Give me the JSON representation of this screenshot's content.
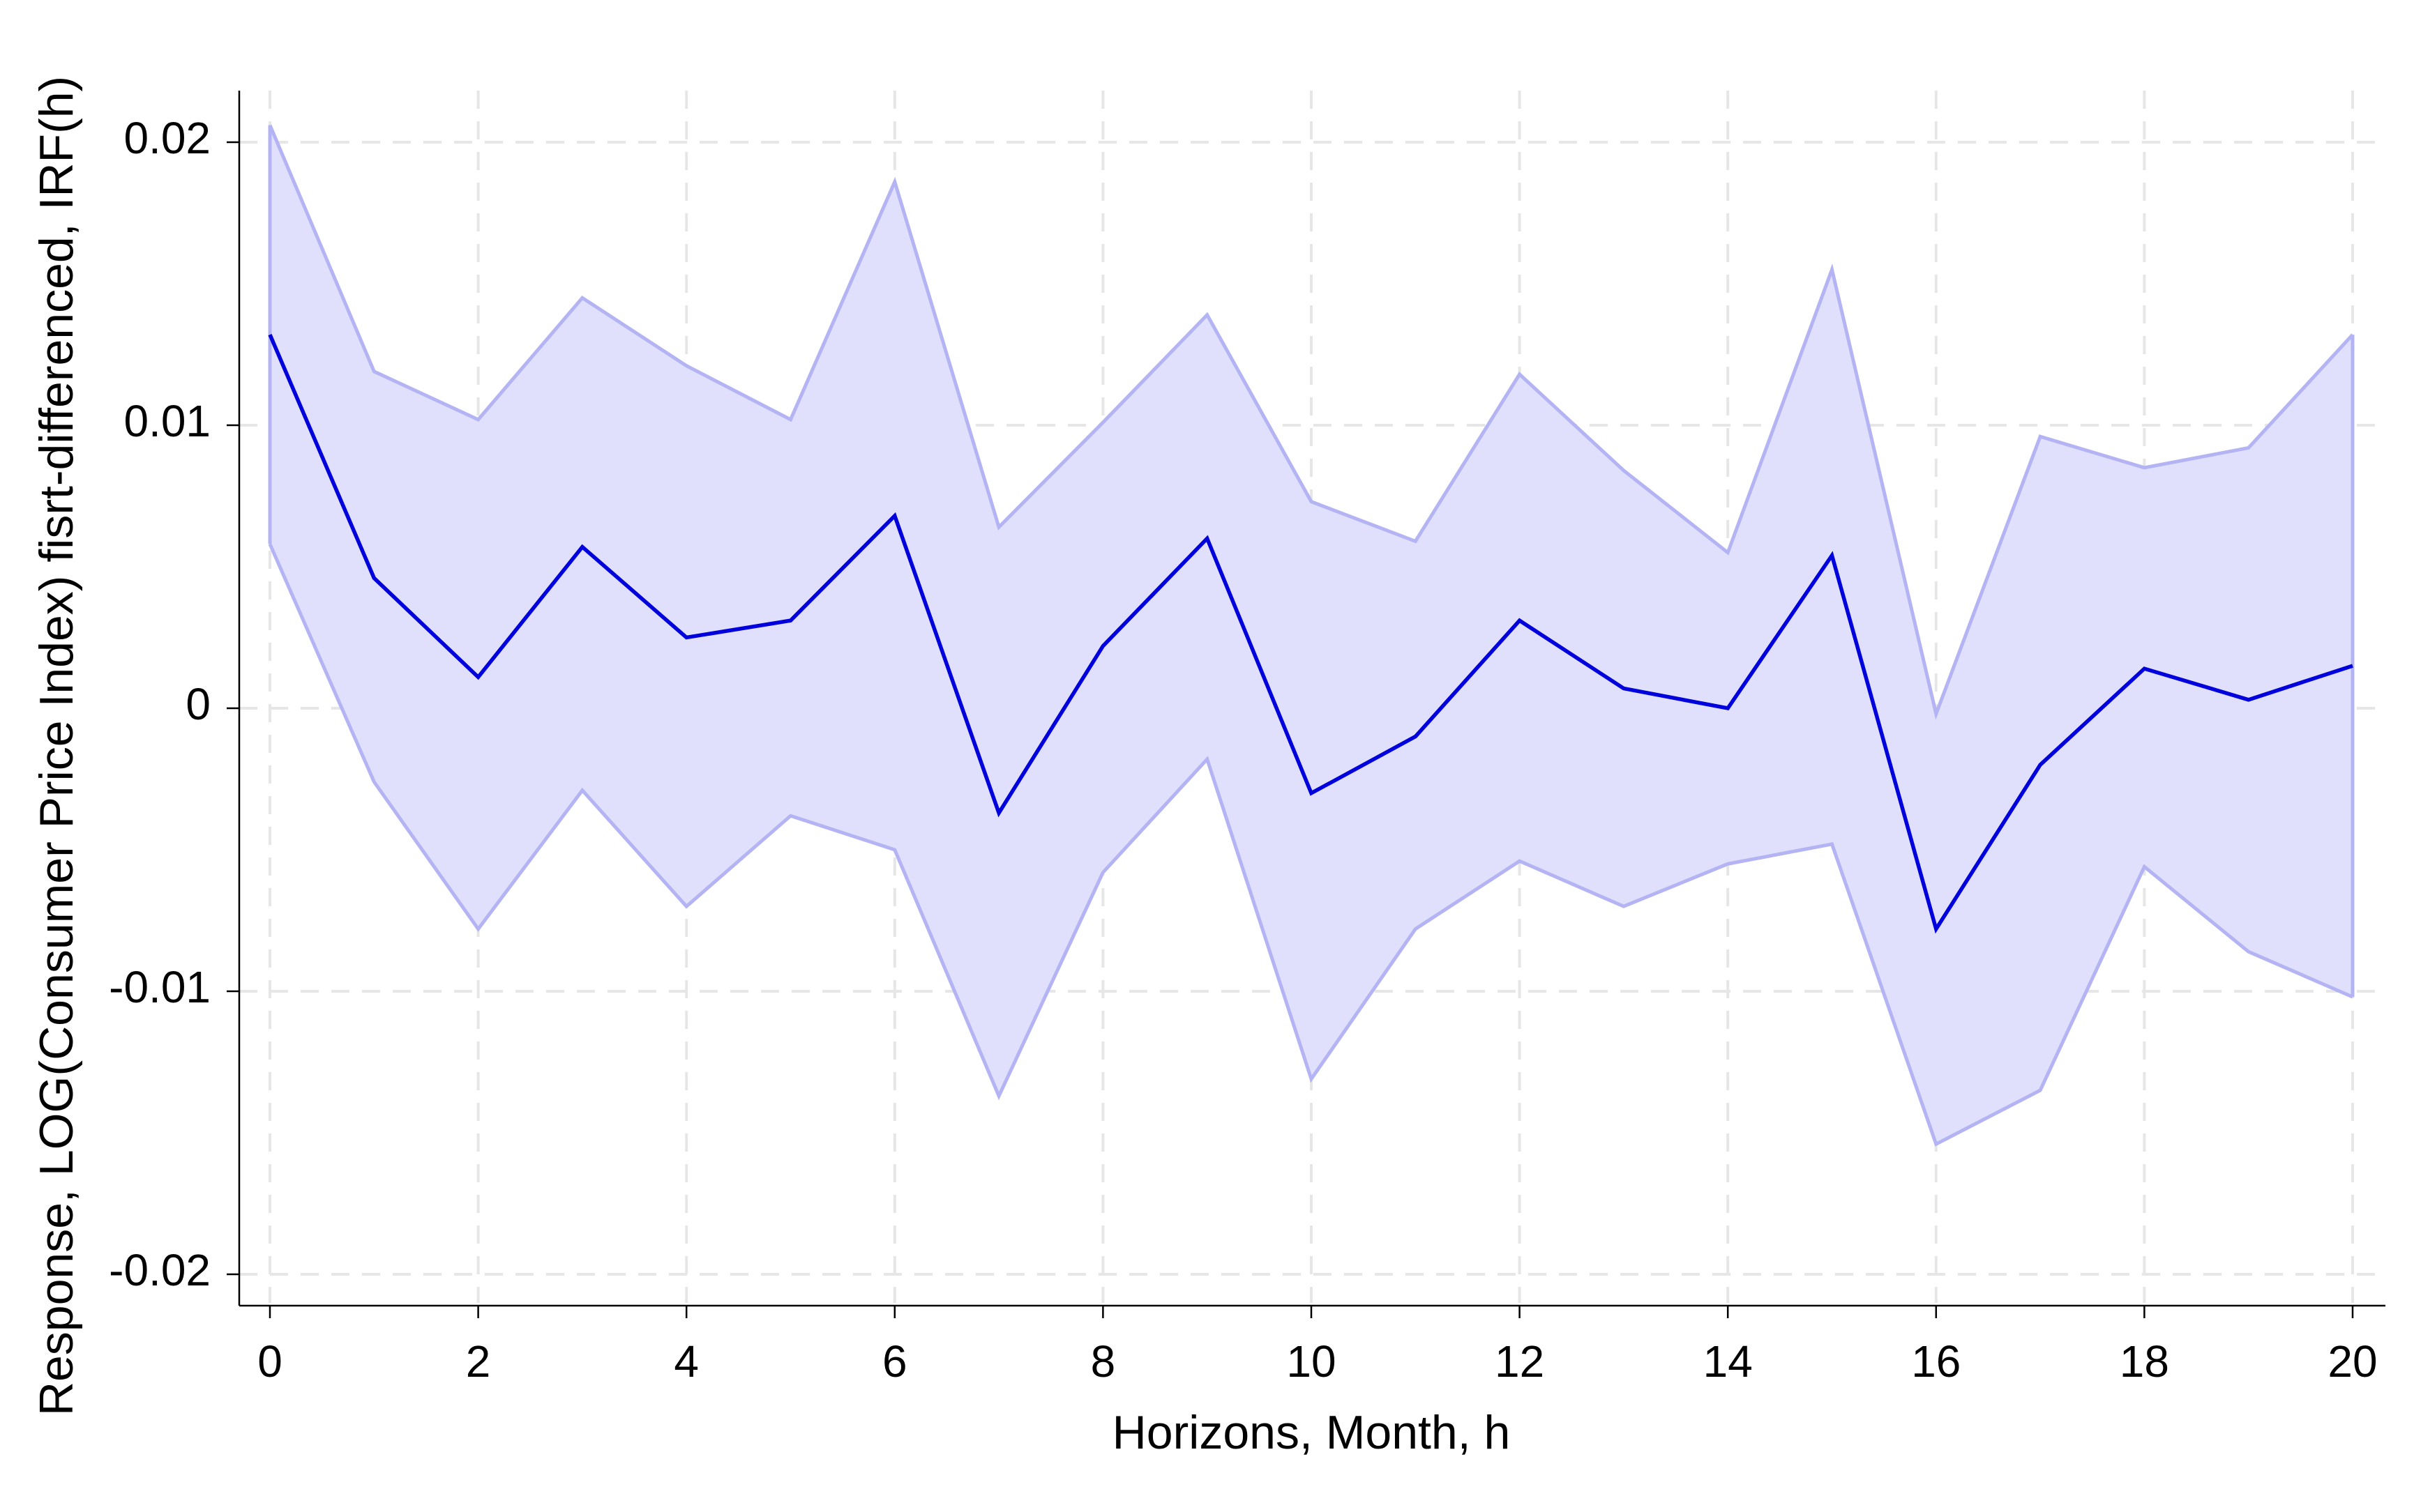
{
  "chart_data": {
    "type": "line",
    "xlabel": "Horizons, Month, h",
    "ylabel": "Response, LOG(Consumer Price Index) fisrt-differenced, IRF(h)",
    "xlim": [
      0,
      20
    ],
    "ylim": [
      -0.02,
      0.02
    ],
    "xticks": [
      0,
      2,
      4,
      6,
      8,
      10,
      12,
      14,
      16,
      18,
      20
    ],
    "yticks": [
      -0.02,
      -0.01,
      0,
      0.01,
      0.02
    ],
    "ytick_labels": [
      "-0.02",
      "-0.01",
      "0",
      "0.01",
      "0.02"
    ],
    "grid": true,
    "grid_style": "dashed",
    "x": [
      0,
      1,
      2,
      3,
      4,
      5,
      6,
      7,
      8,
      9,
      10,
      11,
      12,
      13,
      14,
      15,
      16,
      17,
      18,
      19,
      20
    ],
    "series": [
      {
        "role": "estimate",
        "color": "#0000dd",
        "values": [
          0.0132,
          0.0046,
          0.0011,
          0.0057,
          0.0025,
          0.0031,
          0.0068,
          -0.0037,
          0.0022,
          0.006,
          -0.003,
          -0.001,
          0.0031,
          0.0007,
          0.0,
          0.0054,
          -0.0078,
          -0.002,
          0.0014,
          0.0003,
          0.0015
        ]
      },
      {
        "role": "upper_bound",
        "color": "#b4b4f4",
        "values": [
          0.0206,
          0.0119,
          0.0102,
          0.0145,
          0.0121,
          0.0102,
          0.0186,
          0.0064,
          0.0101,
          0.0139,
          0.0073,
          0.0059,
          0.0118,
          0.0084,
          0.0055,
          0.0155,
          -0.0002,
          0.0096,
          0.0085,
          0.0092,
          0.0132
        ]
      },
      {
        "role": "lower_bound",
        "color": "#b4b4f4",
        "values": [
          0.0058,
          -0.0026,
          -0.0078,
          -0.0029,
          -0.007,
          -0.0038,
          -0.005,
          -0.0137,
          -0.0058,
          -0.0018,
          -0.0131,
          -0.0078,
          -0.0054,
          -0.007,
          -0.0055,
          -0.0048,
          -0.0154,
          -0.0135,
          -0.0056,
          -0.0086,
          -0.0102
        ]
      }
    ],
    "band_fill_color": "#e0e0fc"
  }
}
